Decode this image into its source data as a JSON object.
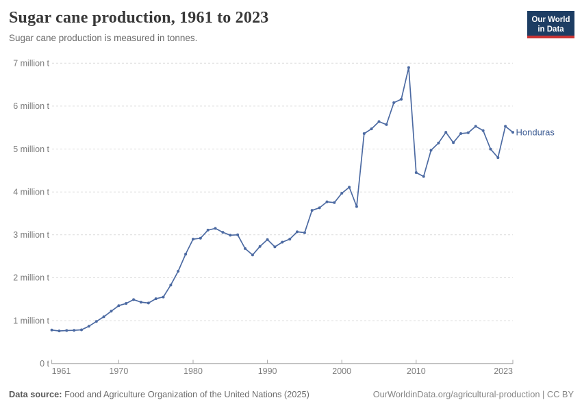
{
  "header": {
    "title": "Sugar cane production, 1961 to 2023",
    "subtitle": "Sugar cane production is measured in tonnes.",
    "logo": {
      "line1": "Our World",
      "line2": "in Data"
    }
  },
  "entity_label": "Honduras",
  "colors": {
    "line": "#4c6aa2",
    "entity_label": "#3d5c94",
    "logo_navy": "#1d3d63",
    "logo_red": "#cb3434",
    "gridline": "#dcdcdc",
    "axis": "#a5a5a5",
    "tick_text": "#7d7d7d"
  },
  "chart_data": {
    "type": "line",
    "title": "Sugar cane production, 1961 to 2023",
    "subtitle": "Sugar cane production is measured in tonnes.",
    "unit": "tonnes",
    "xlabel": "",
    "ylabel": "",
    "xlim": [
      1961,
      2023
    ],
    "ylim_million_tonnes": [
      0,
      7
    ],
    "grid": "horizontal-dashed",
    "legend": "line-end-label",
    "x_ticks": [
      1961,
      1970,
      1980,
      1990,
      2000,
      2010,
      2023
    ],
    "y_tick_labels": [
      "0 t",
      "1 million t",
      "2 million t",
      "3 million t",
      "4 million t",
      "5 million t",
      "6 million t",
      "7 million t"
    ],
    "series": [
      {
        "name": "Honduras",
        "x": [
          1961,
          1962,
          1963,
          1964,
          1965,
          1966,
          1967,
          1968,
          1969,
          1970,
          1971,
          1972,
          1973,
          1974,
          1975,
          1976,
          1977,
          1978,
          1979,
          1980,
          1981,
          1982,
          1983,
          1984,
          1985,
          1986,
          1987,
          1988,
          1989,
          1990,
          1991,
          1992,
          1993,
          1994,
          1995,
          1996,
          1997,
          1998,
          1999,
          2000,
          2001,
          2002,
          2003,
          2004,
          2005,
          2006,
          2007,
          2008,
          2009,
          2010,
          2011,
          2012,
          2013,
          2014,
          2015,
          2016,
          2017,
          2018,
          2019,
          2020,
          2021,
          2022,
          2023
        ],
        "values_million_tonnes": [
          0.78,
          0.76,
          0.77,
          0.775,
          0.785,
          0.87,
          0.98,
          1.09,
          1.22,
          1.35,
          1.4,
          1.49,
          1.43,
          1.41,
          1.51,
          1.55,
          1.83,
          2.15,
          2.55,
          2.9,
          2.92,
          3.11,
          3.15,
          3.06,
          2.99,
          3.0,
          2.68,
          2.53,
          2.73,
          2.89,
          2.72,
          2.83,
          2.9,
          3.07,
          3.05,
          3.57,
          3.63,
          3.77,
          3.75,
          3.97,
          4.11,
          3.66,
          5.36,
          5.47,
          5.64,
          5.57,
          6.08,
          6.16,
          6.9,
          4.45,
          4.36,
          4.97,
          5.14,
          5.39,
          5.15,
          5.36,
          5.38,
          5.53,
          5.43,
          5.0,
          4.8,
          5.53,
          5.39
        ]
      }
    ]
  },
  "footer": {
    "source_label": "Data source:",
    "source_text": " Food and Agriculture Organization of the United Nations (2025)",
    "link_text": "OurWorldinData.org/agricultural-production | CC BY"
  }
}
